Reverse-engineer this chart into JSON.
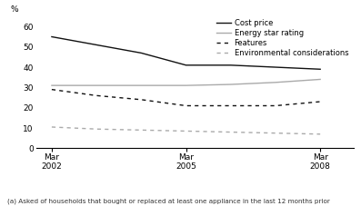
{
  "ylabel": "%",
  "footnote": "(a) Asked of households that bought or replaced at least one appliance in the last 12 months prior",
  "x_ticks_labels": [
    "Mar\n2002",
    "Mar\n2005",
    "Mar\n2008"
  ],
  "x_ticks_positions": [
    2002.25,
    2005.25,
    2008.25
  ],
  "xlim": [
    2001.9,
    2009.0
  ],
  "ylim": [
    0,
    65
  ],
  "yticks": [
    0,
    10,
    20,
    30,
    40,
    50,
    60
  ],
  "series": {
    "Cost price": {
      "x": [
        2002.25,
        2003.25,
        2004.25,
        2005.25,
        2006.25,
        2007.25,
        2008.25
      ],
      "y": [
        55,
        51,
        47,
        41,
        41,
        40,
        39
      ],
      "color": "#111111",
      "linestyle": "solid",
      "linewidth": 1.0
    },
    "Energy star rating": {
      "x": [
        2002.25,
        2003.25,
        2004.25,
        2005.25,
        2006.25,
        2007.25,
        2008.25
      ],
      "y": [
        31,
        31,
        31,
        31,
        31.5,
        32.5,
        34
      ],
      "color": "#aaaaaa",
      "linestyle": "solid",
      "linewidth": 1.0
    },
    "Features": {
      "x": [
        2002.25,
        2003.25,
        2004.25,
        2005.25,
        2006.25,
        2007.25,
        2008.25
      ],
      "y": [
        29,
        26,
        24,
        21,
        21,
        21,
        23
      ],
      "color": "#111111",
      "linestyle": "dashed",
      "linewidth": 1.0,
      "dashes": [
        3,
        3
      ]
    },
    "Environmental considerations": {
      "x": [
        2002.25,
        2003.25,
        2004.25,
        2005.25,
        2006.25,
        2007.25,
        2008.25
      ],
      "y": [
        10.5,
        9.5,
        9,
        8.5,
        8,
        7.5,
        7
      ],
      "color": "#aaaaaa",
      "linestyle": "dashed",
      "linewidth": 1.0,
      "dashes": [
        3,
        3
      ]
    }
  },
  "legend_order": [
    "Cost price",
    "Energy star rating",
    "Features",
    "Environmental considerations"
  ],
  "background_color": "#ffffff"
}
